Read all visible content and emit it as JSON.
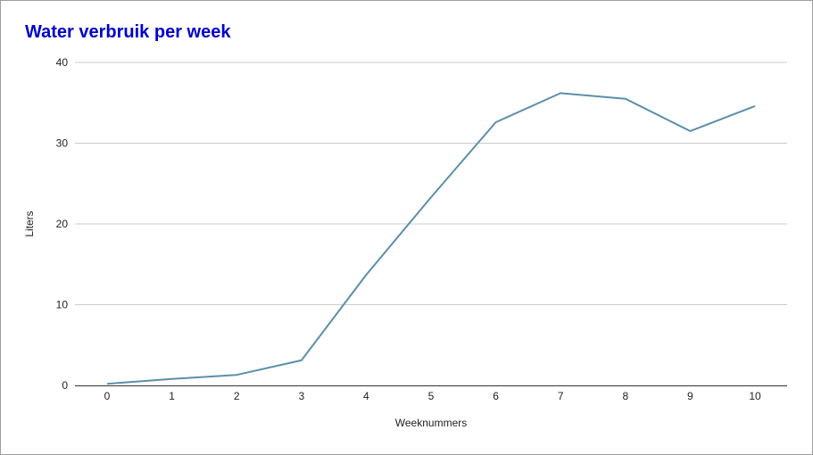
{
  "chart_data": {
    "type": "line",
    "title": "Water verbruik per week",
    "xlabel": "Weeknummers",
    "ylabel": "Liters",
    "x": [
      0,
      1,
      2,
      3,
      4,
      5,
      6,
      7,
      8,
      9,
      10
    ],
    "series": [
      {
        "values": [
          0.2,
          0.8,
          1.3,
          3.1,
          13.7,
          23.3,
          32.6,
          36.2,
          35.5,
          31.5,
          34.6
        ]
      }
    ],
    "xticks": [
      "0",
      "1",
      "2",
      "3",
      "4",
      "5",
      "6",
      "7",
      "8",
      "9",
      "10"
    ],
    "yticks": [
      "0",
      "10",
      "20",
      "30",
      "40"
    ],
    "ylim": [
      0,
      40
    ],
    "xlim": [
      0,
      10
    ],
    "grid": true,
    "legend": "none",
    "colors": {
      "title": "#0000cc",
      "line": "#5b8fa8",
      "grid": "#cccccc",
      "axis": "#333333"
    }
  }
}
